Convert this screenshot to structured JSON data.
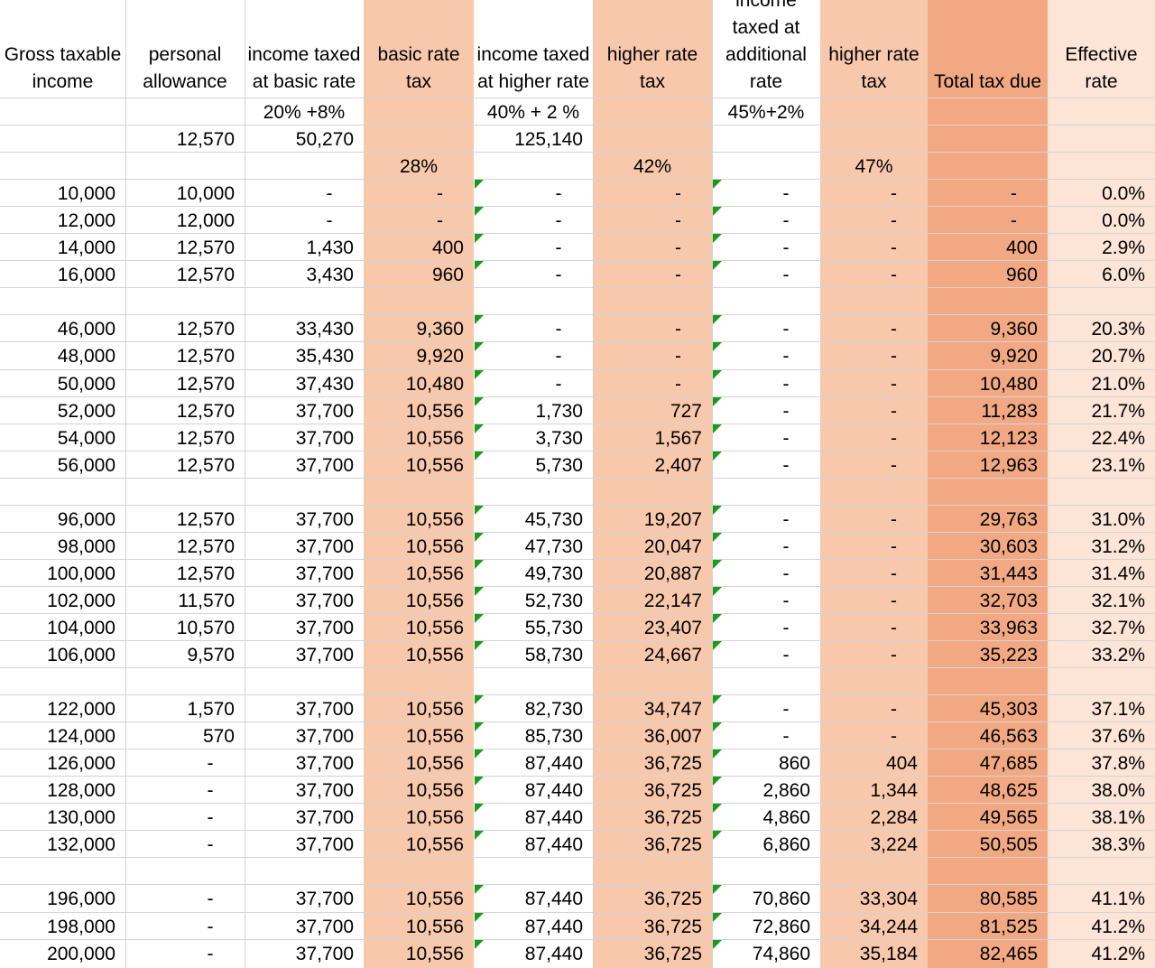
{
  "colors": {
    "basic_rate_tax_fill": "#f8c8ac",
    "higher_rate_tax_fill": "#f8c8ac",
    "higher_rate_tax2_fill": "#f8c8ac",
    "total_tax_due_fill": "#f2a983",
    "effective_rate_fill": "#fce4d6",
    "gridline": "#d4d4d4",
    "error_indicator": "#1a9a1a"
  },
  "headers": [
    "Gross taxable\nincome",
    "personal\nallowance",
    "income taxed\nat basic rate",
    "basic rate\ntax",
    "income taxed\nat higher rate",
    "higher rate\ntax",
    "income\ntaxed at\nadditional\nrate",
    "higher rate\ntax",
    "Total tax due",
    "Effective\nrate"
  ],
  "params": {
    "rates_row": [
      "",
      "",
      "20% +8%",
      "",
      "40% + 2 %",
      "",
      "45%+2%",
      "",
      "",
      ""
    ],
    "thresholds_row": [
      "",
      "12,570",
      "50,270",
      "",
      "125,140",
      "",
      "",
      "",
      "",
      ""
    ],
    "combined_rates_row": [
      "",
      "",
      "",
      "28%",
      "",
      "42%",
      "",
      "47%",
      "",
      ""
    ]
  },
  "rows": [
    [
      "10,000",
      "10,000",
      "-",
      "-",
      "-",
      "-",
      "-",
      "-",
      "-",
      "0.0%"
    ],
    [
      "12,000",
      "12,000",
      "-",
      "-",
      "-",
      "-",
      "-",
      "-",
      "-",
      "0.0%"
    ],
    [
      "14,000",
      "12,570",
      "1,430",
      "400",
      "-",
      "-",
      "-",
      "-",
      "400",
      "2.9%"
    ],
    [
      "16,000",
      "12,570",
      "3,430",
      "960",
      "-",
      "-",
      "-",
      "-",
      "960",
      "6.0%"
    ],
    [],
    [
      "46,000",
      "12,570",
      "33,430",
      "9,360",
      "-",
      "-",
      "-",
      "-",
      "9,360",
      "20.3%"
    ],
    [
      "48,000",
      "12,570",
      "35,430",
      "9,920",
      "-",
      "-",
      "-",
      "-",
      "9,920",
      "20.7%"
    ],
    [
      "50,000",
      "12,570",
      "37,430",
      "10,480",
      "-",
      "-",
      "-",
      "-",
      "10,480",
      "21.0%"
    ],
    [
      "52,000",
      "12,570",
      "37,700",
      "10,556",
      "1,730",
      "727",
      "-",
      "-",
      "11,283",
      "21.7%"
    ],
    [
      "54,000",
      "12,570",
      "37,700",
      "10,556",
      "3,730",
      "1,567",
      "-",
      "-",
      "12,123",
      "22.4%"
    ],
    [
      "56,000",
      "12,570",
      "37,700",
      "10,556",
      "5,730",
      "2,407",
      "-",
      "-",
      "12,963",
      "23.1%"
    ],
    [],
    [
      "96,000",
      "12,570",
      "37,700",
      "10,556",
      "45,730",
      "19,207",
      "-",
      "-",
      "29,763",
      "31.0%"
    ],
    [
      "98,000",
      "12,570",
      "37,700",
      "10,556",
      "47,730",
      "20,047",
      "-",
      "-",
      "30,603",
      "31.2%"
    ],
    [
      "100,000",
      "12,570",
      "37,700",
      "10,556",
      "49,730",
      "20,887",
      "-",
      "-",
      "31,443",
      "31.4%"
    ],
    [
      "102,000",
      "11,570",
      "37,700",
      "10,556",
      "52,730",
      "22,147",
      "-",
      "-",
      "32,703",
      "32.1%"
    ],
    [
      "104,000",
      "10,570",
      "37,700",
      "10,556",
      "55,730",
      "23,407",
      "-",
      "-",
      "33,963",
      "32.7%"
    ],
    [
      "106,000",
      "9,570",
      "37,700",
      "10,556",
      "58,730",
      "24,667",
      "-",
      "-",
      "35,223",
      "33.2%"
    ],
    [],
    [
      "122,000",
      "1,570",
      "37,700",
      "10,556",
      "82,730",
      "34,747",
      "-",
      "-",
      "45,303",
      "37.1%"
    ],
    [
      "124,000",
      "570",
      "37,700",
      "10,556",
      "85,730",
      "36,007",
      "-",
      "-",
      "46,563",
      "37.6%"
    ],
    [
      "126,000",
      "-",
      "37,700",
      "10,556",
      "87,440",
      "36,725",
      "860",
      "404",
      "47,685",
      "37.8%"
    ],
    [
      "128,000",
      "-",
      "37,700",
      "10,556",
      "87,440",
      "36,725",
      "2,860",
      "1,344",
      "48,625",
      "38.0%"
    ],
    [
      "130,000",
      "-",
      "37,700",
      "10,556",
      "87,440",
      "36,725",
      "4,860",
      "2,284",
      "49,565",
      "38.1%"
    ],
    [
      "132,000",
      "-",
      "37,700",
      "10,556",
      "87,440",
      "36,725",
      "6,860",
      "3,224",
      "50,505",
      "38.3%"
    ],
    [],
    [
      "196,000",
      "-",
      "37,700",
      "10,556",
      "87,440",
      "36,725",
      "70,860",
      "33,304",
      "80,585",
      "41.1%"
    ],
    [
      "198,000",
      "-",
      "37,700",
      "10,556",
      "87,440",
      "36,725",
      "72,860",
      "34,244",
      "81,525",
      "41.2%"
    ],
    [
      "200,000",
      "-",
      "37,700",
      "10,556",
      "87,440",
      "36,725",
      "74,860",
      "35,184",
      "82,465",
      "41.2%"
    ]
  ]
}
